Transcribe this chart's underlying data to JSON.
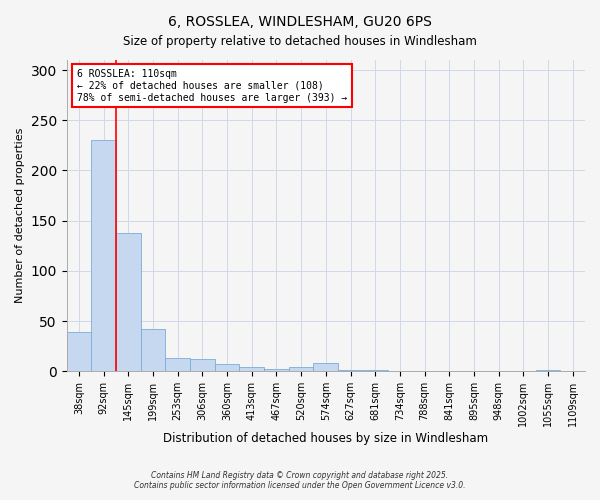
{
  "title": "6, ROSSLEA, WINDLESHAM, GU20 6PS",
  "subtitle": "Size of property relative to detached houses in Windlesham",
  "xlabel": "Distribution of detached houses by size in Windlesham",
  "ylabel": "Number of detached properties",
  "bar_labels": [
    "38sqm",
    "92sqm",
    "145sqm",
    "199sqm",
    "253sqm",
    "306sqm",
    "360sqm",
    "413sqm",
    "467sqm",
    "520sqm",
    "574sqm",
    "627sqm",
    "681sqm",
    "734sqm",
    "788sqm",
    "841sqm",
    "895sqm",
    "948sqm",
    "1002sqm",
    "1055sqm",
    "1109sqm"
  ],
  "bar_values": [
    39,
    230,
    138,
    42,
    13,
    12,
    7,
    4,
    2,
    4,
    8,
    1,
    1,
    0,
    0,
    0,
    0,
    0,
    0,
    1,
    0
  ],
  "bar_color": "#c5d8f0",
  "bar_edge_color": "#7aacdc",
  "ylim": [
    0,
    310
  ],
  "yticks": [
    0,
    50,
    100,
    150,
    200,
    250,
    300
  ],
  "redline_x": 1.5,
  "annotation_title": "6 ROSSLEA: 110sqm",
  "annotation_line1": "← 22% of detached houses are smaller (108)",
  "annotation_line2": "78% of semi-detached houses are larger (393) →",
  "footnote1": "Contains HM Land Registry data © Crown copyright and database right 2025.",
  "footnote2": "Contains public sector information licensed under the Open Government Licence v3.0.",
  "background_color": "#f5f5f5",
  "grid_color": "#d0d8e8"
}
